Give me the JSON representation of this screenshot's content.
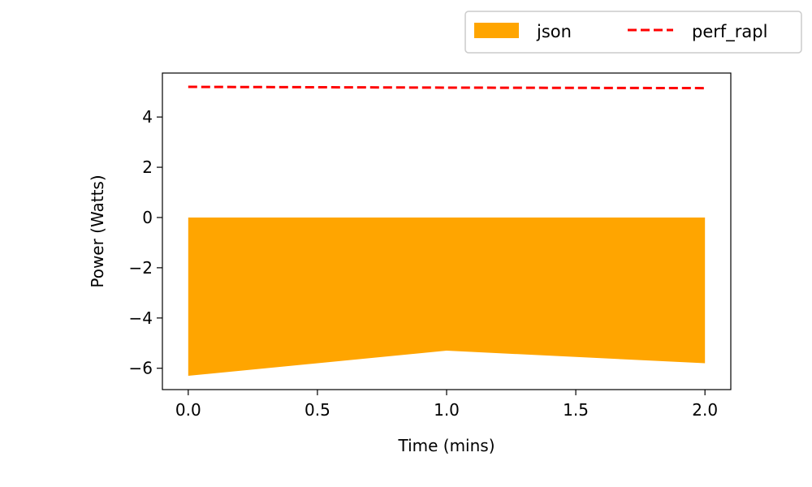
{
  "chart_data": {
    "type": "area",
    "xlabel": "Time (mins)",
    "ylabel": "Power (Watts)",
    "xlim": [
      -0.1,
      2.1
    ],
    "ylim": [
      -6.85,
      5.75
    ],
    "xticks": [
      0.0,
      0.5,
      1.0,
      1.5,
      2.0
    ],
    "xtick_labels": [
      "0.0",
      "0.5",
      "1.0",
      "1.5",
      "2.0"
    ],
    "yticks": [
      -6,
      -4,
      -2,
      0,
      2,
      4
    ],
    "ytick_labels": [
      "−6",
      "−4",
      "−2",
      "0",
      "2",
      "4"
    ],
    "grid": false,
    "legend_position": "top-right, outside plot",
    "series": [
      {
        "name": "json",
        "kind": "filled-area",
        "color": "#ffa500",
        "x": [
          0.0,
          1.0,
          2.0
        ],
        "upper": [
          0,
          0,
          0
        ],
        "lower": [
          -6.3,
          -5.3,
          -5.8
        ]
      },
      {
        "name": "perf_rapl",
        "kind": "dashed-line",
        "color": "#ff0000",
        "x": [
          0.0,
          1.0,
          2.0
        ],
        "values": [
          5.2,
          5.17,
          5.15
        ]
      }
    ]
  }
}
